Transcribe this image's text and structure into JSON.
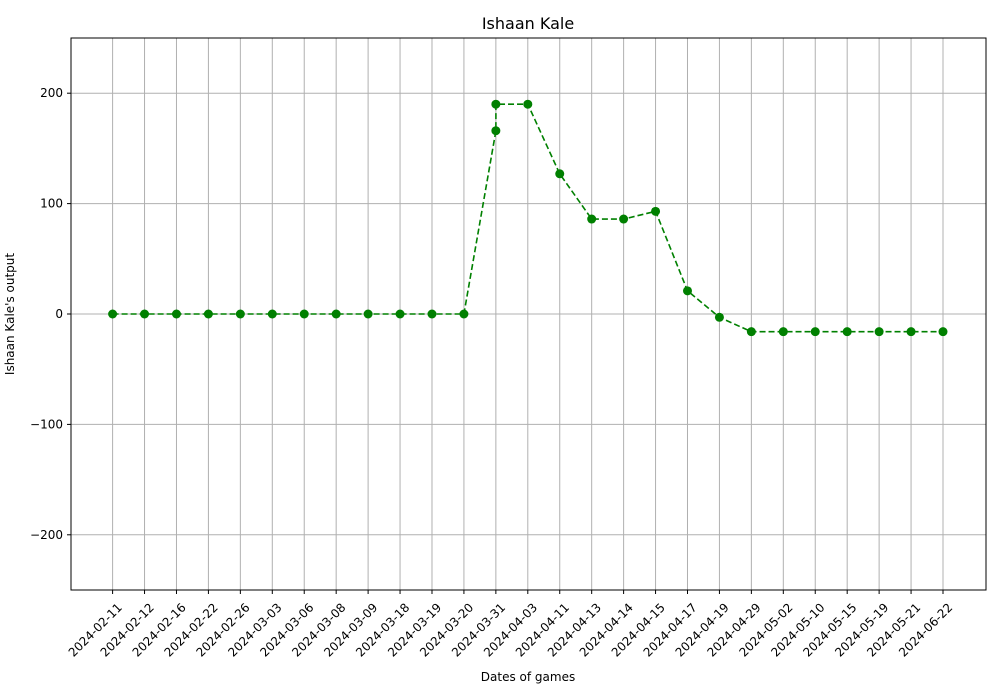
{
  "chart_data": {
    "type": "line",
    "title": "Ishaan Kale",
    "xlabel": "Dates of games",
    "ylabel": "Ishaan Kale's output",
    "categories": [
      "2024-02-11",
      "2024-02-12",
      "2024-02-16",
      "2024-02-22",
      "2024-02-26",
      "2024-03-03",
      "2024-03-06",
      "2024-03-08",
      "2024-03-09",
      "2024-03-18",
      "2024-03-19",
      "2024-03-20",
      "2024-03-31",
      "2024-04-03",
      "2024-04-11",
      "2024-04-13",
      "2024-04-14",
      "2024-04-15",
      "2024-04-17",
      "2024-04-19",
      "2024-04-29",
      "2024-05-02",
      "2024-05-10",
      "2024-05-15",
      "2024-05-19",
      "2024-05-21",
      "2024-06-22"
    ],
    "points": [
      {
        "x": "2024-02-11",
        "y": 0
      },
      {
        "x": "2024-02-12",
        "y": 0
      },
      {
        "x": "2024-02-16",
        "y": 0
      },
      {
        "x": "2024-02-22",
        "y": 0
      },
      {
        "x": "2024-02-26",
        "y": 0
      },
      {
        "x": "2024-03-03",
        "y": 0
      },
      {
        "x": "2024-03-06",
        "y": 0
      },
      {
        "x": "2024-03-08",
        "y": 0
      },
      {
        "x": "2024-03-09",
        "y": 0
      },
      {
        "x": "2024-03-18",
        "y": 0
      },
      {
        "x": "2024-03-19",
        "y": 0
      },
      {
        "x": "2024-03-20",
        "y": 0
      },
      {
        "x": "2024-03-31",
        "y": 166
      },
      {
        "x": "2024-03-31",
        "y": 190
      },
      {
        "x": "2024-04-03",
        "y": 190
      },
      {
        "x": "2024-04-11",
        "y": 127
      },
      {
        "x": "2024-04-13",
        "y": 86
      },
      {
        "x": "2024-04-14",
        "y": 86
      },
      {
        "x": "2024-04-15",
        "y": 93
      },
      {
        "x": "2024-04-17",
        "y": 21
      },
      {
        "x": "2024-04-19",
        "y": -3
      },
      {
        "x": "2024-04-29",
        "y": -16
      },
      {
        "x": "2024-05-02",
        "y": -16
      },
      {
        "x": "2024-05-10",
        "y": -16
      },
      {
        "x": "2024-05-15",
        "y": -16
      },
      {
        "x": "2024-05-19",
        "y": -16
      },
      {
        "x": "2024-05-21",
        "y": -16
      },
      {
        "x": "2024-06-22",
        "y": -16
      }
    ],
    "ylim": [
      -250,
      250
    ],
    "yticks": [
      -200,
      -100,
      0,
      100,
      200
    ],
    "ytick_labels": [
      "−200",
      "−100",
      "0",
      "100",
      "200"
    ],
    "grid": true,
    "line_style": "dashed",
    "marker": "circle",
    "color": "#008000"
  }
}
